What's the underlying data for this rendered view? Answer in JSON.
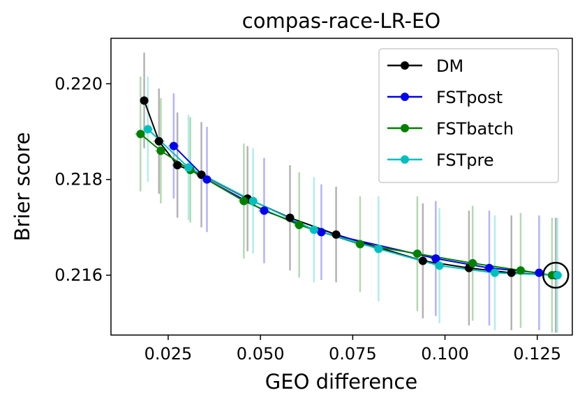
{
  "chart_data": {
    "type": "line",
    "title": "compas-race-LR-EO",
    "xlabel": "GEO difference",
    "ylabel": "Brier score",
    "xlim": [
      0.0095,
      0.1345
    ],
    "ylim": [
      0.21475,
      0.22095
    ],
    "xticks": [
      0.025,
      0.05,
      0.075,
      0.1,
      0.125
    ],
    "xtick_labels": [
      "0.025",
      "0.050",
      "0.075",
      "0.100",
      "0.125"
    ],
    "yticks": [
      0.216,
      0.218,
      0.22
    ],
    "ytick_labels": [
      "0.216",
      "0.218",
      "0.220"
    ],
    "legend_position": "upper right",
    "highlight": {
      "x": 0.13,
      "y": 0.216,
      "shape": "circle"
    },
    "series": [
      {
        "name": "DM",
        "color": "#000000",
        "err_color": "#b3b3b3",
        "x": [
          0.0185,
          0.0225,
          0.0275,
          0.034,
          0.0465,
          0.058,
          0.0705,
          0.094,
          0.1065,
          0.118,
          0.13
        ],
        "y": [
          0.21965,
          0.2188,
          0.2183,
          0.2181,
          0.2176,
          0.2172,
          0.21685,
          0.2163,
          0.21615,
          0.21605,
          0.216
        ],
        "yerr": [
          0.001,
          0.0011,
          0.0011,
          0.0011,
          0.0011,
          0.0011,
          0.001,
          0.0012,
          0.0012,
          0.0012,
          0.0012
        ],
        "xerr": [
          0.0012,
          0.0015,
          0.0015,
          0.0015,
          0.0012,
          0.0012,
          0.0012,
          0.0015,
          0.0015,
          0.0015,
          0.0015
        ]
      },
      {
        "name": "FSTpost",
        "color": "#0000ee",
        "err_color": "#b3b3f7",
        "x": [
          0.0265,
          0.0355,
          0.051,
          0.0665,
          0.0975,
          0.112,
          0.1255
        ],
        "y": [
          0.2187,
          0.218,
          0.21735,
          0.2169,
          0.21635,
          0.21615,
          0.21605
        ],
        "yerr": [
          0.0011,
          0.0011,
          0.0011,
          0.001,
          0.0012,
          0.0012,
          0.0012
        ],
        "xerr": [
          0.0015,
          0.0015,
          0.0015,
          0.0015,
          0.0015,
          0.0015,
          0.0015
        ]
      },
      {
        "name": "FSTbatch",
        "color": "#008000",
        "err_color": "#b3d9b3",
        "x": [
          0.0175,
          0.023,
          0.031,
          0.0455,
          0.0605,
          0.077,
          0.0925,
          0.1075,
          0.1205,
          0.129
        ],
        "y": [
          0.21895,
          0.2186,
          0.2182,
          0.21755,
          0.21705,
          0.21665,
          0.21645,
          0.21625,
          0.2161,
          0.216
        ],
        "yerr": [
          0.0012,
          0.0011,
          0.0011,
          0.0012,
          0.0011,
          0.001,
          0.0012,
          0.0012,
          0.0012,
          0.0012
        ],
        "xerr": [
          0.0015,
          0.0015,
          0.0015,
          0.0015,
          0.0015,
          0.0015,
          0.0015,
          0.0015,
          0.0015,
          0.0015
        ]
      },
      {
        "name": "FSTpre",
        "color": "#00bfbf",
        "err_color": "#b3ecec",
        "x": [
          0.0195,
          0.0305,
          0.048,
          0.0645,
          0.082,
          0.0985,
          0.1135,
          0.1305
        ],
        "y": [
          0.21905,
          0.21825,
          0.21755,
          0.21695,
          0.21655,
          0.2162,
          0.21605,
          0.216
        ],
        "yerr": [
          0.0011,
          0.0011,
          0.0011,
          0.0011,
          0.0011,
          0.0012,
          0.0012,
          0.0012
        ],
        "xerr": [
          0.0015,
          0.0015,
          0.0015,
          0.0015,
          0.0015,
          0.0015,
          0.0015,
          0.0015
        ]
      }
    ]
  }
}
